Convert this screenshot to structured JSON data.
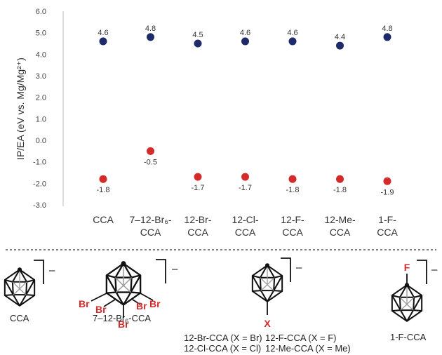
{
  "chart_data": {
    "type": "scatter",
    "ylabel": "IP/EA (eV vs. Mg/Mg²⁺)",
    "ylim": [
      -3.0,
      6.0
    ],
    "yticks": [
      "6.0",
      "5.0",
      "4.0",
      "3.0",
      "2.0",
      "1.0",
      "0.0",
      "-1.0",
      "-2.0",
      "-3.0"
    ],
    "ytick_values": [
      6,
      5,
      4,
      3,
      2,
      1,
      0,
      -1,
      -2,
      -3
    ],
    "grid": false,
    "categories": [
      [
        "CCA"
      ],
      [
        "7–12-Br₆-",
        "CCA"
      ],
      [
        "12-Br-",
        "CCA"
      ],
      [
        "12-Cl-",
        "CCA"
      ],
      [
        "12-F-",
        "CCA"
      ],
      [
        "12-Me-",
        "CCA"
      ],
      [
        "1-F-",
        "CCA"
      ]
    ],
    "series": [
      {
        "color": "#1f2a6b",
        "values": [
          4.6,
          4.8,
          4.5,
          4.6,
          4.6,
          4.4,
          4.8
        ],
        "labels": [
          "4.6",
          "4.8",
          "4.5",
          "4.6",
          "4.6",
          "4.4",
          "4.8"
        ],
        "label_position": "above"
      },
      {
        "color": "#d42a2a",
        "values": [
          -1.8,
          -0.5,
          -1.7,
          -1.7,
          -1.8,
          -1.8,
          -1.9
        ],
        "labels": [
          "-1.8",
          "-0.5",
          "-1.7",
          "-1.7",
          "-1.8",
          "-1.8",
          "-1.9"
        ],
        "label_position": "below"
      }
    ]
  },
  "structures": {
    "charge": "–",
    "substituent_color": "#d42a2a",
    "cca": {
      "name": "CCA"
    },
    "br6": {
      "name_prefix": "7–12-Br",
      "name_sub": "6",
      "name_suffix": "-CCA",
      "substituent": "Br"
    },
    "x": {
      "substituent": "X",
      "captions": [
        "12-Br-CCA (X = Br)",
        "12-F-CCA (X = F)",
        "12-Cl-CCA (X = Cl)",
        "12-Me-CCA (X = Me)"
      ]
    },
    "f1": {
      "name": "1-F-CCA",
      "substituent": "F"
    }
  }
}
